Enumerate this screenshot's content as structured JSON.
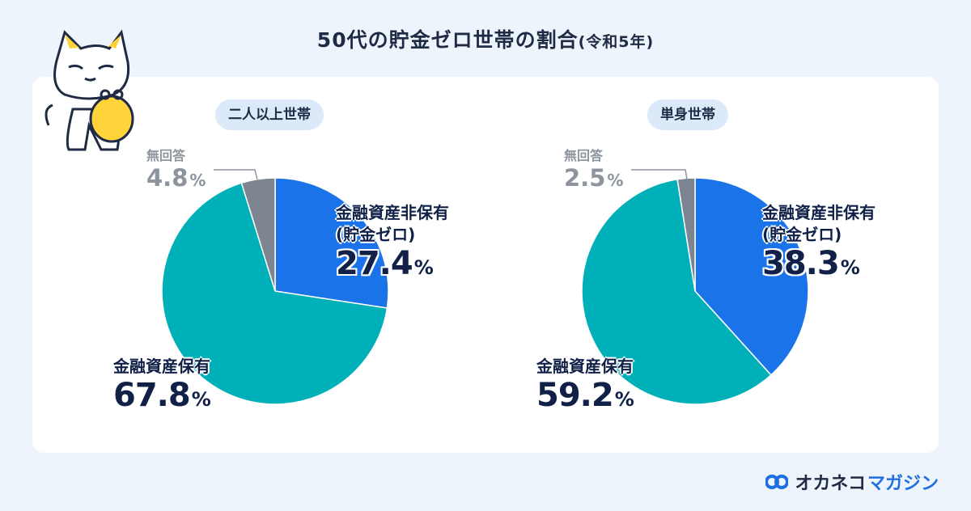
{
  "title": {
    "main": "50代の貯金ゼロ世帯の割合",
    "sub": "(令和5年)"
  },
  "brand": {
    "name": "オカネコ",
    "suffix": "マガジン"
  },
  "colors": {
    "zero": "#1a73e8",
    "holding": "#00b0b9",
    "noanswer": "#7d8590"
  },
  "chart_data": [
    {
      "type": "pie",
      "title": "二人以上世帯",
      "slices": [
        {
          "key": "zero",
          "label": "金融資産非保有\n(貯金ゼロ)",
          "label_line1": "金融資産非保有",
          "label_line2": "(貯金ゼロ)",
          "value": 27.4,
          "value_text": "27.4",
          "unit": "%"
        },
        {
          "key": "holding",
          "label": "金融資産保有",
          "value": 67.8,
          "value_text": "67.8",
          "unit": "%"
        },
        {
          "key": "noanswer",
          "label": "無回答",
          "value": 4.8,
          "value_text": "4.8",
          "unit": "%"
        }
      ]
    },
    {
      "type": "pie",
      "title": "単身世帯",
      "slices": [
        {
          "key": "zero",
          "label": "金融資産非保有\n(貯金ゼロ)",
          "label_line1": "金融資産非保有",
          "label_line2": "(貯金ゼロ)",
          "value": 38.3,
          "value_text": "38.3",
          "unit": "%"
        },
        {
          "key": "holding",
          "label": "金融資産保有",
          "value": 59.2,
          "value_text": "59.2",
          "unit": "%"
        },
        {
          "key": "noanswer",
          "label": "無回答",
          "value": 2.5,
          "value_text": "2.5",
          "unit": "%"
        }
      ]
    }
  ]
}
